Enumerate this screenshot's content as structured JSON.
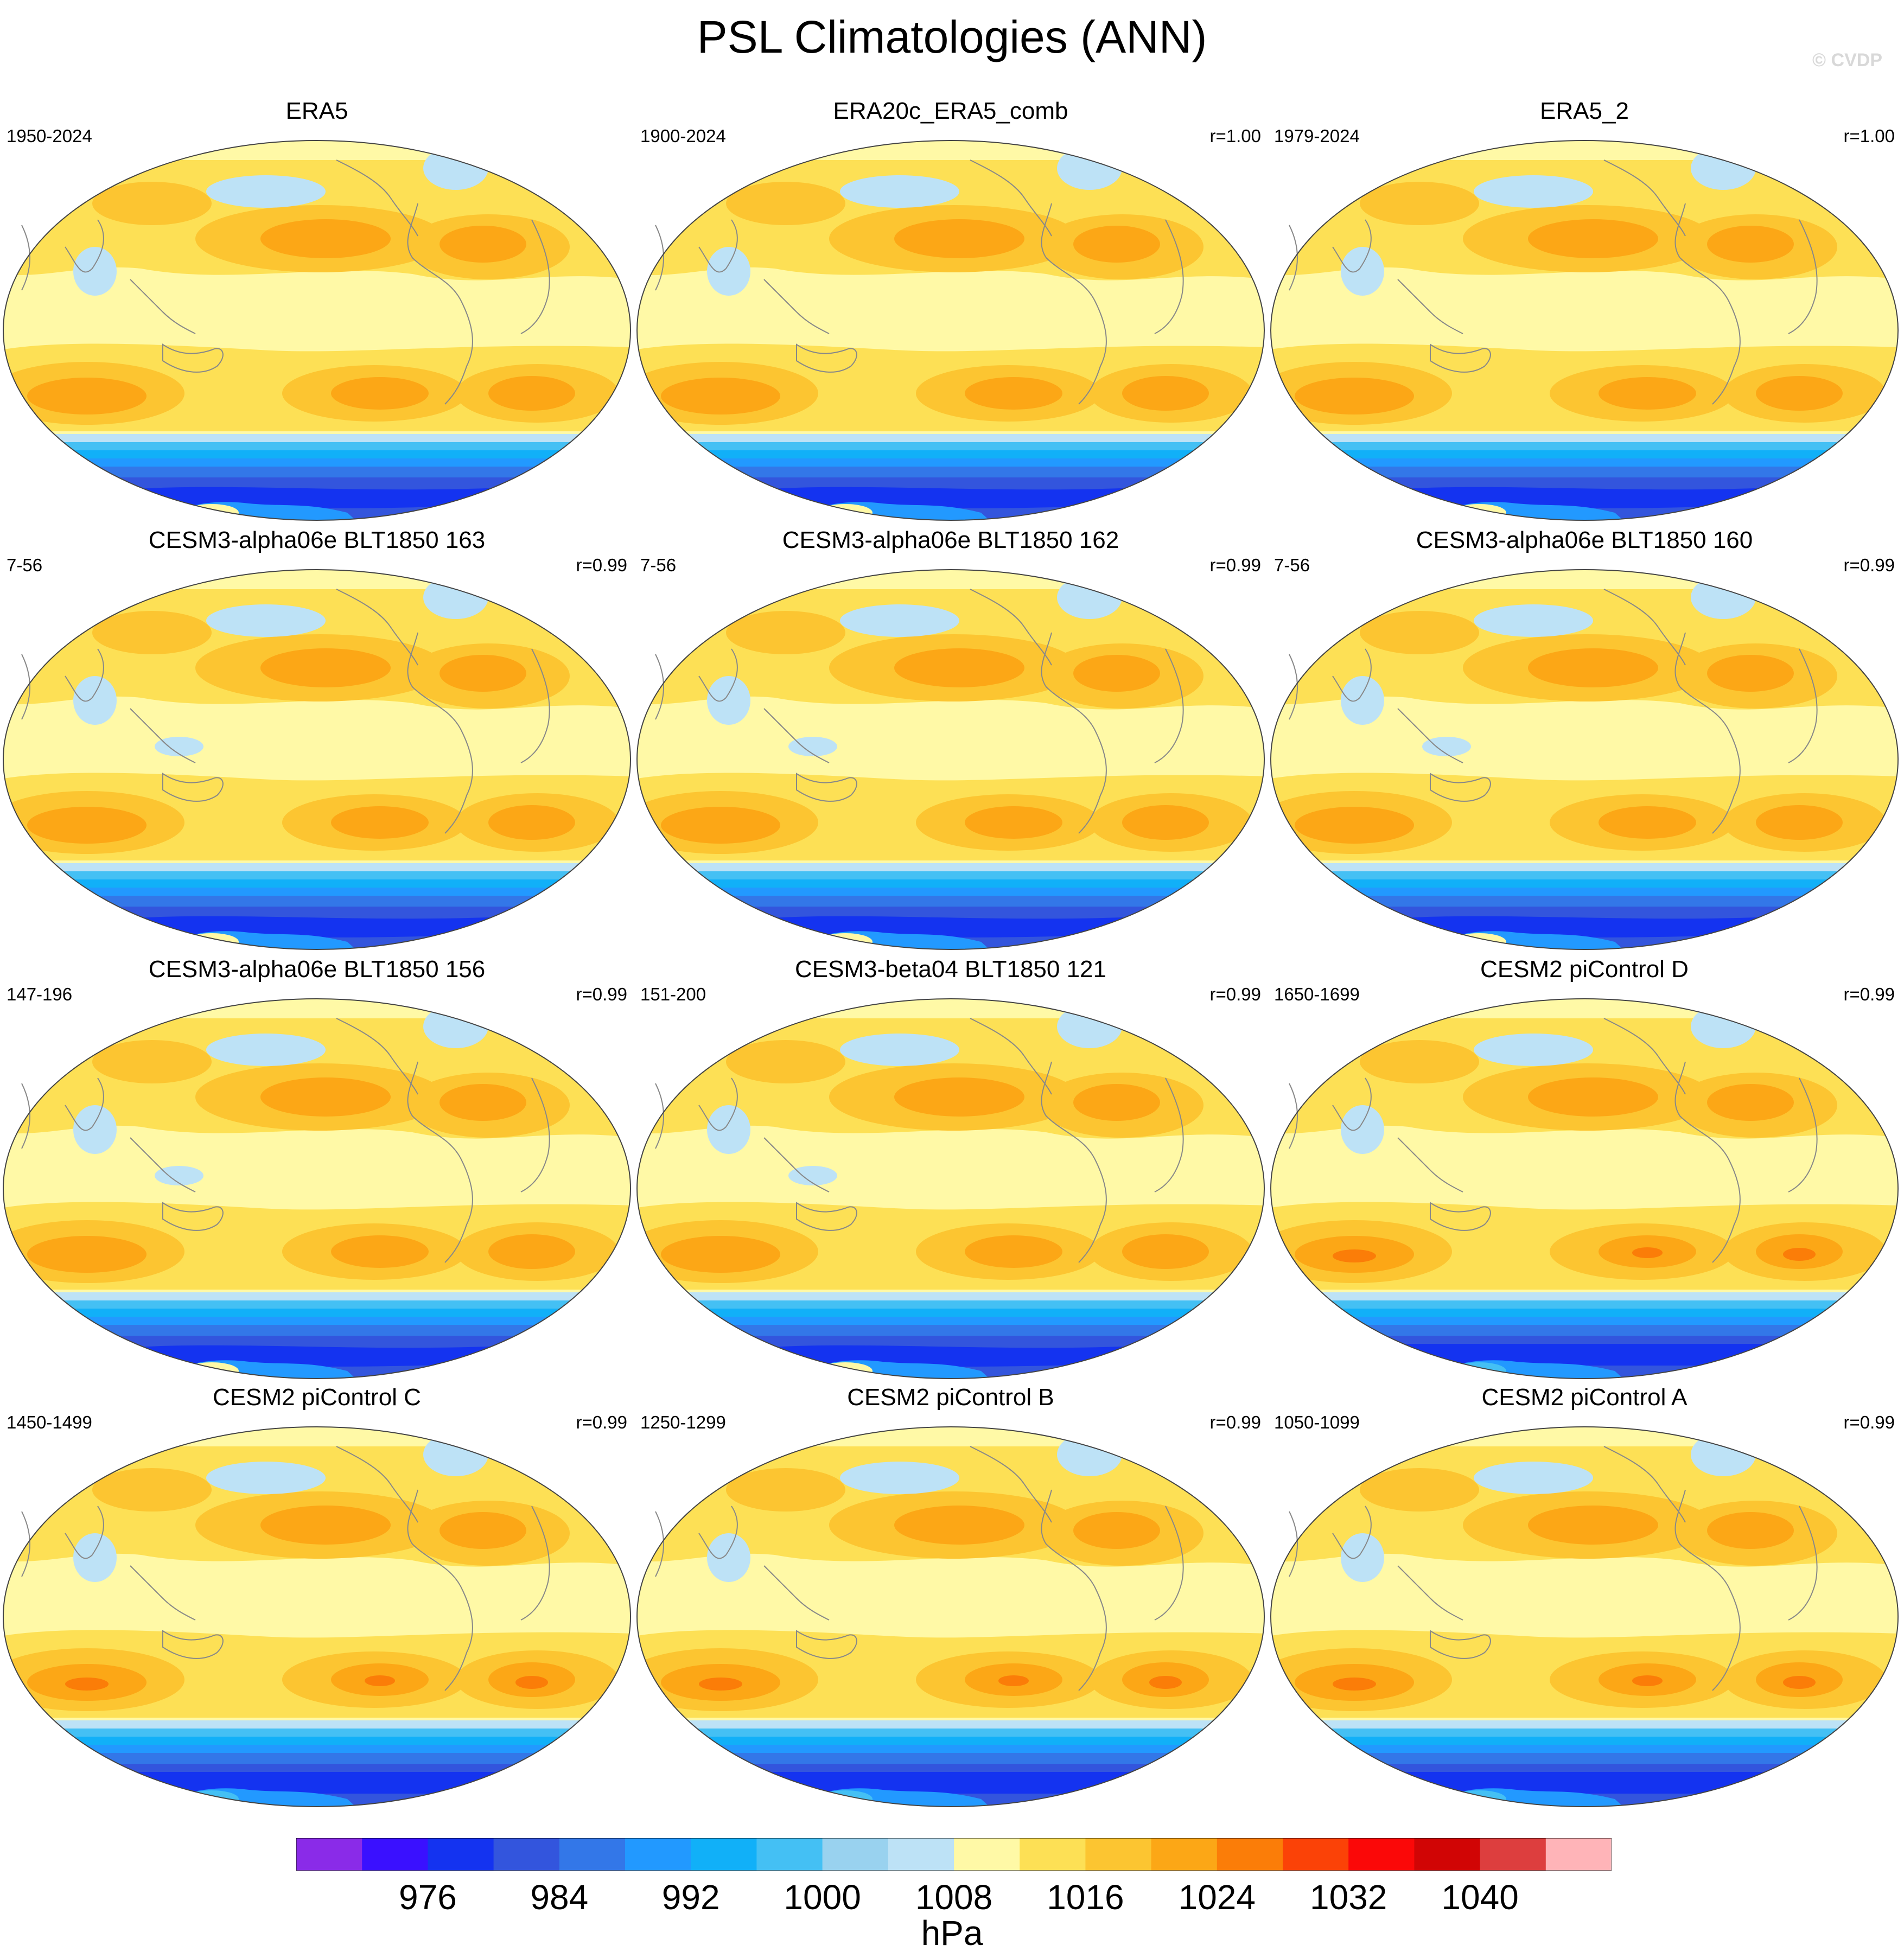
{
  "title": "PSL Climatologies (ANN)",
  "watermark": "© CVDP",
  "panels": [
    {
      "title": "ERA5",
      "period": "1950-2024",
      "r": "",
      "variant": 0
    },
    {
      "title": "ERA20c_ERA5_comb",
      "period": "1900-2024",
      "r": "r=1.00",
      "variant": 0
    },
    {
      "title": "ERA5_2",
      "period": "1979-2024",
      "r": "r=1.00",
      "variant": 0
    },
    {
      "title": "CESM3-alpha06e BLT1850 163",
      "period": "7-56",
      "r": "r=0.99",
      "variant": 1
    },
    {
      "title": "CESM3-alpha06e BLT1850 162",
      "period": "7-56",
      "r": "r=0.99",
      "variant": 1
    },
    {
      "title": "CESM3-alpha06e BLT1850 160",
      "period": "7-56",
      "r": "r=0.99",
      "variant": 1
    },
    {
      "title": "CESM3-alpha06e BLT1850 156",
      "period": "147-196",
      "r": "r=0.99",
      "variant": 1
    },
    {
      "title": "CESM3-beta04 BLT1850 121",
      "period": "151-200",
      "r": "r=0.99",
      "variant": 1
    },
    {
      "title": "CESM2 piControl D",
      "period": "1650-1699",
      "r": "r=0.99",
      "variant": 2
    },
    {
      "title": "CESM2 piControl C",
      "period": "1450-1499",
      "r": "r=0.99",
      "variant": 2
    },
    {
      "title": "CESM2 piControl B",
      "period": "1250-1299",
      "r": "r=0.99",
      "variant": 2
    },
    {
      "title": "CESM2 piControl A",
      "period": "1050-1099",
      "r": "r=0.99",
      "variant": 2
    }
  ],
  "colorbar": {
    "colors": [
      "#8a2be8",
      "#3a10ff",
      "#1433f0",
      "#3355dd",
      "#3377e8",
      "#2299ff",
      "#11b0f8",
      "#44c0f4",
      "#99d2ef",
      "#bde2f6",
      "#fff9a6",
      "#fde055",
      "#fcc531",
      "#fca716",
      "#fb7d08",
      "#fb4207",
      "#fb0808",
      "#d10505",
      "#dd3e3e",
      "#ffb4b8"
    ],
    "labels": [
      "976",
      "984",
      "992",
      "1000",
      "1008",
      "1016",
      "1024",
      "1032",
      "1040"
    ],
    "unit": "hPa"
  }
}
